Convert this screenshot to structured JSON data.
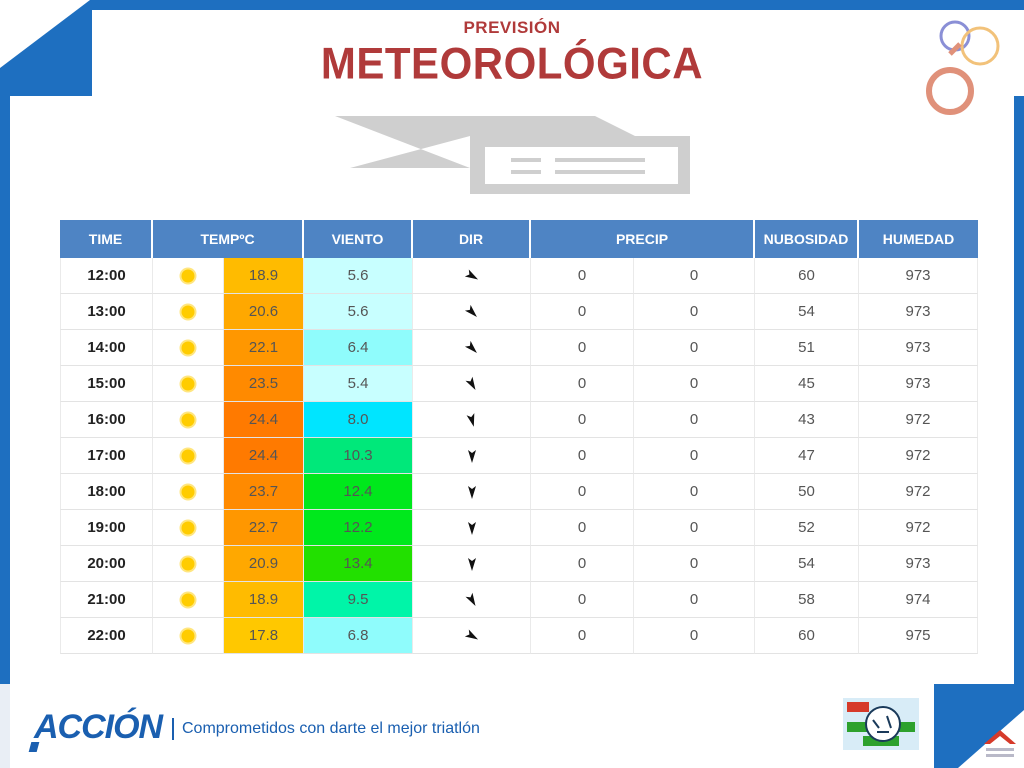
{
  "header": {
    "title_top": "PREVISIÓN",
    "title_main": "METEOROLÓGICA"
  },
  "table": {
    "columns": [
      "TIME",
      "TEMPºC",
      "VIENTO",
      "DIR",
      "PRECIP",
      "NUBOSIDAD",
      "HUMEDAD"
    ],
    "rows": [
      {
        "time": "12:00",
        "temp": "18.9",
        "wind": "5.6",
        "dir_deg": 60,
        "precip1": "0",
        "precip2": "0",
        "nub": "60",
        "hum": "973",
        "temp_color": "#ffbb00",
        "wind_color": "#c8ffff"
      },
      {
        "time": "13:00",
        "temp": "20.6",
        "wind": "5.6",
        "dir_deg": 45,
        "precip1": "0",
        "precip2": "0",
        "nub": "54",
        "hum": "973",
        "temp_color": "#ffa800",
        "wind_color": "#c8ffff"
      },
      {
        "time": "14:00",
        "temp": "22.1",
        "wind": "6.4",
        "dir_deg": 45,
        "precip1": "0",
        "precip2": "0",
        "nub": "51",
        "hum": "973",
        "temp_color": "#ff9700",
        "wind_color": "#8ffcfc"
      },
      {
        "time": "15:00",
        "temp": "23.5",
        "wind": "5.4",
        "dir_deg": 30,
        "precip1": "0",
        "precip2": "0",
        "nub": "45",
        "hum": "973",
        "temp_color": "#ff8a00",
        "wind_color": "#c8ffff"
      },
      {
        "time": "16:00",
        "temp": "24.4",
        "wind": "8.0",
        "dir_deg": 15,
        "precip1": "0",
        "precip2": "0",
        "nub": "43",
        "hum": "972",
        "temp_color": "#ff7a00",
        "wind_color": "#00e5ff"
      },
      {
        "time": "17:00",
        "temp": "24.4",
        "wind": "10.3",
        "dir_deg": 0,
        "precip1": "0",
        "precip2": "0",
        "nub": "47",
        "hum": "972",
        "temp_color": "#ff7a00",
        "wind_color": "#00e87a"
      },
      {
        "time": "18:00",
        "temp": "23.7",
        "wind": "12.4",
        "dir_deg": 0,
        "precip1": "0",
        "precip2": "0",
        "nub": "50",
        "hum": "972",
        "temp_color": "#ff8a00",
        "wind_color": "#00e81c"
      },
      {
        "time": "19:00",
        "temp": "22.7",
        "wind": "12.2",
        "dir_deg": 0,
        "precip1": "0",
        "precip2": "0",
        "nub": "52",
        "hum": "972",
        "temp_color": "#ff9700",
        "wind_color": "#00e81c"
      },
      {
        "time": "20:00",
        "temp": "20.9",
        "wind": "13.4",
        "dir_deg": 0,
        "precip1": "0",
        "precip2": "0",
        "nub": "54",
        "hum": "973",
        "temp_color": "#ffa800",
        "wind_color": "#22e000"
      },
      {
        "time": "21:00",
        "temp": "18.9",
        "wind": "9.5",
        "dir_deg": 30,
        "precip1": "0",
        "precip2": "0",
        "nub": "58",
        "hum": "974",
        "temp_color": "#ffbb00",
        "wind_color": "#00f5a8"
      },
      {
        "time": "22:00",
        "temp": "17.8",
        "wind": "6.8",
        "dir_deg": 60,
        "precip1": "0",
        "precip2": "0",
        "nub": "60",
        "hum": "975",
        "temp_color": "#ffc800",
        "wind_color": "#8ffcfc"
      }
    ],
    "weather_icon": "sun-icon"
  },
  "footer": {
    "brand": "ACCIÓN",
    "slogan": "Comprometidos con darte el mejor triatlón"
  },
  "colors": {
    "frame_blue": "#1e6fc0",
    "header_blue": "#4e84c4",
    "title_red": "#b03a3a"
  }
}
